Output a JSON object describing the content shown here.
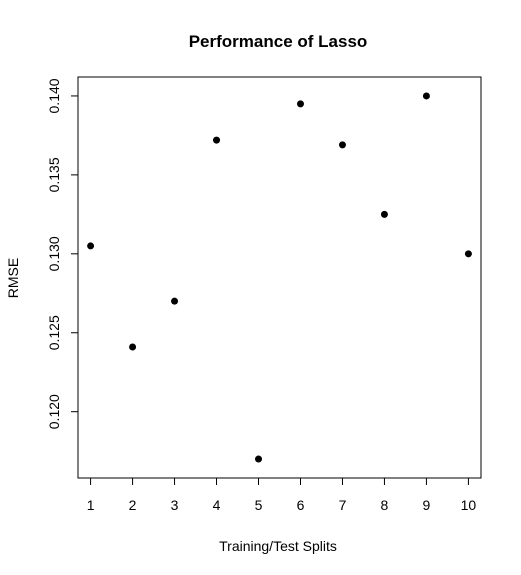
{
  "chart_data": {
    "type": "scatter",
    "title": "Performance of Lasso",
    "xlabel": "Training/Test Splits",
    "ylabel": "RMSE",
    "x": [
      1,
      2,
      3,
      4,
      5,
      6,
      7,
      8,
      9,
      10
    ],
    "y": [
      0.1305,
      0.1241,
      0.127,
      0.1372,
      0.117,
      0.1395,
      0.1369,
      0.1325,
      0.14,
      0.13
    ],
    "xlim": [
      0.7,
      10.3
    ],
    "ylim": [
      0.1158,
      0.1412
    ],
    "x_ticks": [
      1,
      2,
      3,
      4,
      5,
      6,
      7,
      8,
      9,
      10
    ],
    "x_tick_labels": [
      "1",
      "2",
      "3",
      "4",
      "5",
      "6",
      "7",
      "8",
      "9",
      "10"
    ],
    "y_ticks": [
      0.12,
      0.125,
      0.13,
      0.135,
      0.14
    ],
    "y_tick_labels": [
      "0.120",
      "0.125",
      "0.130",
      "0.135",
      "0.140"
    ],
    "grid": false,
    "legend": "none",
    "point_color": "#000000"
  }
}
